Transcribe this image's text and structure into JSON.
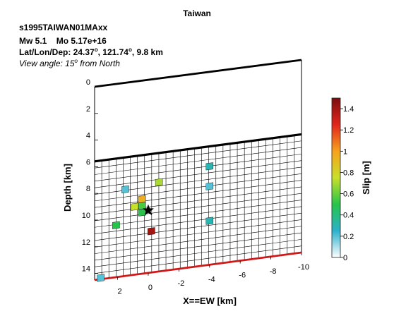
{
  "header": {
    "title": "Taiwan",
    "event_id": "s1995TAIWAN01MAxx",
    "mw": "Mw 5.1",
    "mo": "Mo 5.17e+16",
    "location_prefix": "Lat/Lon/Dep: ",
    "lat": "24.37",
    "lon": "121.74",
    "dep": "9.8 km",
    "view_prefix": "View angle:  15",
    "view_suffix": " from North"
  },
  "chart_data": {
    "type": "heatmap",
    "xlabel": "X==EW [km]",
    "ylabel": "Depth [km]",
    "colorbar_label": "Slip [m]",
    "x_ticks": [
      "2",
      "0",
      "-2",
      "-4",
      "-6",
      "-8",
      "-10"
    ],
    "y_ticks": [
      "0",
      "2",
      "4",
      "6",
      "8",
      "10",
      "12",
      "14"
    ],
    "colorbar_ticks": [
      "0",
      "0.2",
      "0.4",
      "0.6",
      "0.8",
      "1",
      "1.2",
      "1.4"
    ],
    "xlim": [
      3.5,
      -10
    ],
    "depth_range": [
      0,
      14.5
    ],
    "fault_top_depth": 5.6,
    "fault_bottom_depth": 14.5,
    "slip_range": [
      0,
      1.5
    ],
    "colormap": [
      "#ffffff",
      "#2bb1cc",
      "#27c44a",
      "#c8e02a",
      "#f6a21d",
      "#e1261c",
      "#7a0d0d"
    ],
    "grid": true,
    "patches": [
      {
        "x": 1.5,
        "depth": 8.0,
        "slip": 0.2
      },
      {
        "x": -0.7,
        "depth": 7.8,
        "slip": 0.7
      },
      {
        "x": -4.0,
        "depth": 7.1,
        "slip": 0.3
      },
      {
        "x": -4.0,
        "depth": 8.6,
        "slip": 0.2
      },
      {
        "x": 0.4,
        "depth": 8.9,
        "slip": 0.95
      },
      {
        "x": 0.9,
        "depth": 9.4,
        "slip": 0.75
      },
      {
        "x": 0.4,
        "depth": 9.4,
        "slip": 0.55
      },
      {
        "x": 0.4,
        "depth": 9.9,
        "slip": 0.5
      },
      {
        "x": 2.1,
        "depth": 10.6,
        "slip": 0.5
      },
      {
        "x": -4.0,
        "depth": 11.2,
        "slip": 0.3
      },
      {
        "x": -0.2,
        "depth": 11.4,
        "slip": 1.4
      },
      {
        "x": 3.1,
        "depth": 14.4,
        "slip": 0.2
      }
    ],
    "hypocenter": {
      "x": 0.0,
      "depth": 9.8
    }
  }
}
